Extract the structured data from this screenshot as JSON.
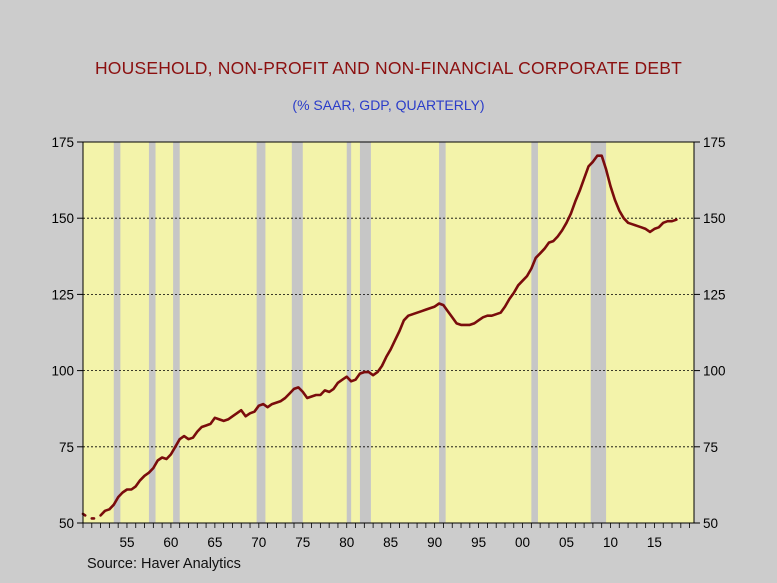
{
  "title": "HOUSEHOLD, NON-PROFIT AND NON-FINANCIAL CORPORATE DEBT",
  "subtitle": "(% SAAR, GDP, QUARTERLY)",
  "source": "Source: Haver Analytics",
  "colors": {
    "background": "#cccccc",
    "plot": "#f3f3aa",
    "line": "#7a0c0c",
    "recession": "#c6c6c6",
    "title": "#8b0f0f",
    "subtitle": "#2a3cc9"
  },
  "chart_data": {
    "type": "line",
    "title": "HOUSEHOLD, NON-PROFIT AND NON-FINANCIAL CORPORATE DEBT",
    "subtitle": "(% SAAR, GDP, QUARTERLY)",
    "xlabel": "",
    "ylabel": "",
    "xlim": [
      1950.0,
      2019.5
    ],
    "ylim": [
      50,
      175
    ],
    "yticks": [
      50,
      75,
      100,
      125,
      150,
      175
    ],
    "xticks": [
      {
        "year": 1955,
        "label": "55"
      },
      {
        "year": 1960,
        "label": "60"
      },
      {
        "year": 1965,
        "label": "65"
      },
      {
        "year": 1970,
        "label": "70"
      },
      {
        "year": 1975,
        "label": "75"
      },
      {
        "year": 1980,
        "label": "80"
      },
      {
        "year": 1985,
        "label": "85"
      },
      {
        "year": 1990,
        "label": "90"
      },
      {
        "year": 1995,
        "label": "95"
      },
      {
        "year": 2000,
        "label": "00"
      },
      {
        "year": 2005,
        "label": "05"
      },
      {
        "year": 2010,
        "label": "10"
      },
      {
        "year": 2015,
        "label": "15"
      }
    ],
    "grid": {
      "horizontal_dashed": [
        75,
        100,
        125,
        150
      ]
    },
    "recessions": [
      [
        1953.5,
        1954.25
      ],
      [
        1957.5,
        1958.25
      ],
      [
        1960.25,
        1961.0
      ],
      [
        1969.75,
        1970.75
      ],
      [
        1973.75,
        1975.0
      ],
      [
        1980.0,
        1980.5
      ],
      [
        1981.5,
        1982.75
      ],
      [
        1990.5,
        1991.25
      ],
      [
        2001.0,
        2001.75
      ],
      [
        2007.75,
        2009.5
      ]
    ],
    "series": [
      {
        "points": [
          [
            1950.0,
            53
          ],
          [
            1950.25,
            52.5
          ],
          [
            1951.0,
            51.5
          ],
          [
            1951.25,
            51.5
          ],
          [
            1952.0,
            52.5
          ],
          [
            1952.5,
            54
          ],
          [
            1953.0,
            54.5
          ],
          [
            1953.5,
            56
          ],
          [
            1954.0,
            58.5
          ],
          [
            1954.5,
            60
          ],
          [
            1955.0,
            61
          ],
          [
            1955.5,
            61
          ],
          [
            1956.0,
            62
          ],
          [
            1956.5,
            64
          ],
          [
            1957.0,
            65.5
          ],
          [
            1957.5,
            66.5
          ],
          [
            1958.0,
            68
          ],
          [
            1958.5,
            70.5
          ],
          [
            1959.0,
            71.5
          ],
          [
            1959.5,
            71
          ],
          [
            1960.0,
            72.5
          ],
          [
            1960.5,
            75
          ],
          [
            1961.0,
            77.5
          ],
          [
            1961.5,
            78.5
          ],
          [
            1962.0,
            77.5
          ],
          [
            1962.5,
            78
          ],
          [
            1963.0,
            80
          ],
          [
            1963.5,
            81.5
          ],
          [
            1964.0,
            82
          ],
          [
            1964.5,
            82.5
          ],
          [
            1965.0,
            84.5
          ],
          [
            1965.5,
            84
          ],
          [
            1966.0,
            83.5
          ],
          [
            1966.5,
            84
          ],
          [
            1967.0,
            85
          ],
          [
            1967.5,
            86
          ],
          [
            1968.0,
            87
          ],
          [
            1968.5,
            85
          ],
          [
            1969.0,
            86
          ],
          [
            1969.5,
            86.5
          ],
          [
            1970.0,
            88.5
          ],
          [
            1970.5,
            89
          ],
          [
            1971.0,
            88
          ],
          [
            1971.5,
            89
          ],
          [
            1972.0,
            89.5
          ],
          [
            1972.5,
            90
          ],
          [
            1973.0,
            91
          ],
          [
            1973.5,
            92.5
          ],
          [
            1974.0,
            94
          ],
          [
            1974.5,
            94.5
          ],
          [
            1975.0,
            93
          ],
          [
            1975.5,
            91
          ],
          [
            1976.0,
            91.5
          ],
          [
            1976.5,
            92
          ],
          [
            1977.0,
            92
          ],
          [
            1977.5,
            93.5
          ],
          [
            1978.0,
            93
          ],
          [
            1978.5,
            94
          ],
          [
            1979.0,
            96
          ],
          [
            1979.5,
            97
          ],
          [
            1980.0,
            98
          ],
          [
            1980.5,
            96.5
          ],
          [
            1981.0,
            97
          ],
          [
            1981.5,
            99
          ],
          [
            1982.0,
            99.5
          ],
          [
            1982.5,
            99.5
          ],
          [
            1983.0,
            98.5
          ],
          [
            1983.5,
            99.5
          ],
          [
            1984.0,
            101.5
          ],
          [
            1984.5,
            104.5
          ],
          [
            1985.0,
            107
          ],
          [
            1985.5,
            110
          ],
          [
            1986.0,
            113
          ],
          [
            1986.5,
            116.5
          ],
          [
            1987.0,
            118
          ],
          [
            1987.5,
            118.5
          ],
          [
            1988.0,
            119
          ],
          [
            1988.5,
            119.5
          ],
          [
            1989.0,
            120
          ],
          [
            1989.5,
            120.5
          ],
          [
            1990.0,
            121
          ],
          [
            1990.5,
            122
          ],
          [
            1991.0,
            121.5
          ],
          [
            1991.5,
            119.5
          ],
          [
            1992.0,
            117.5
          ],
          [
            1992.5,
            115.5
          ],
          [
            1993.0,
            115
          ],
          [
            1993.5,
            115
          ],
          [
            1994.0,
            115
          ],
          [
            1994.5,
            115.5
          ],
          [
            1995.0,
            116.5
          ],
          [
            1995.5,
            117.5
          ],
          [
            1996.0,
            118
          ],
          [
            1996.5,
            118
          ],
          [
            1997.0,
            118.5
          ],
          [
            1997.5,
            119
          ],
          [
            1998.0,
            121
          ],
          [
            1998.5,
            123.5
          ],
          [
            1999.0,
            125.5
          ],
          [
            1999.5,
            128
          ],
          [
            2000.0,
            129.5
          ],
          [
            2000.5,
            131
          ],
          [
            2001.0,
            133.5
          ],
          [
            2001.5,
            137
          ],
          [
            2002.0,
            138.5
          ],
          [
            2002.5,
            140
          ],
          [
            2003.0,
            142
          ],
          [
            2003.5,
            142.5
          ],
          [
            2004.0,
            144
          ],
          [
            2004.5,
            146
          ],
          [
            2005.0,
            148.5
          ],
          [
            2005.5,
            151.5
          ],
          [
            2006.0,
            155.5
          ],
          [
            2006.5,
            159
          ],
          [
            2007.0,
            163
          ],
          [
            2007.5,
            167
          ],
          [
            2008.0,
            168.5
          ],
          [
            2008.5,
            170.5
          ],
          [
            2009.0,
            170.5
          ],
          [
            2009.5,
            166
          ],
          [
            2010.0,
            160.5
          ],
          [
            2010.5,
            156
          ],
          [
            2011.0,
            152.5
          ],
          [
            2011.5,
            150
          ],
          [
            2012.0,
            148.5
          ],
          [
            2012.5,
            148
          ],
          [
            2013.0,
            147.5
          ],
          [
            2013.5,
            147
          ],
          [
            2014.0,
            146.5
          ],
          [
            2014.5,
            145.5
          ],
          [
            2015.0,
            146.5
          ],
          [
            2015.5,
            147
          ],
          [
            2016.0,
            148.5
          ],
          [
            2016.5,
            149
          ],
          [
            2017.0,
            149
          ],
          [
            2017.5,
            149.5
          ]
        ]
      }
    ]
  }
}
